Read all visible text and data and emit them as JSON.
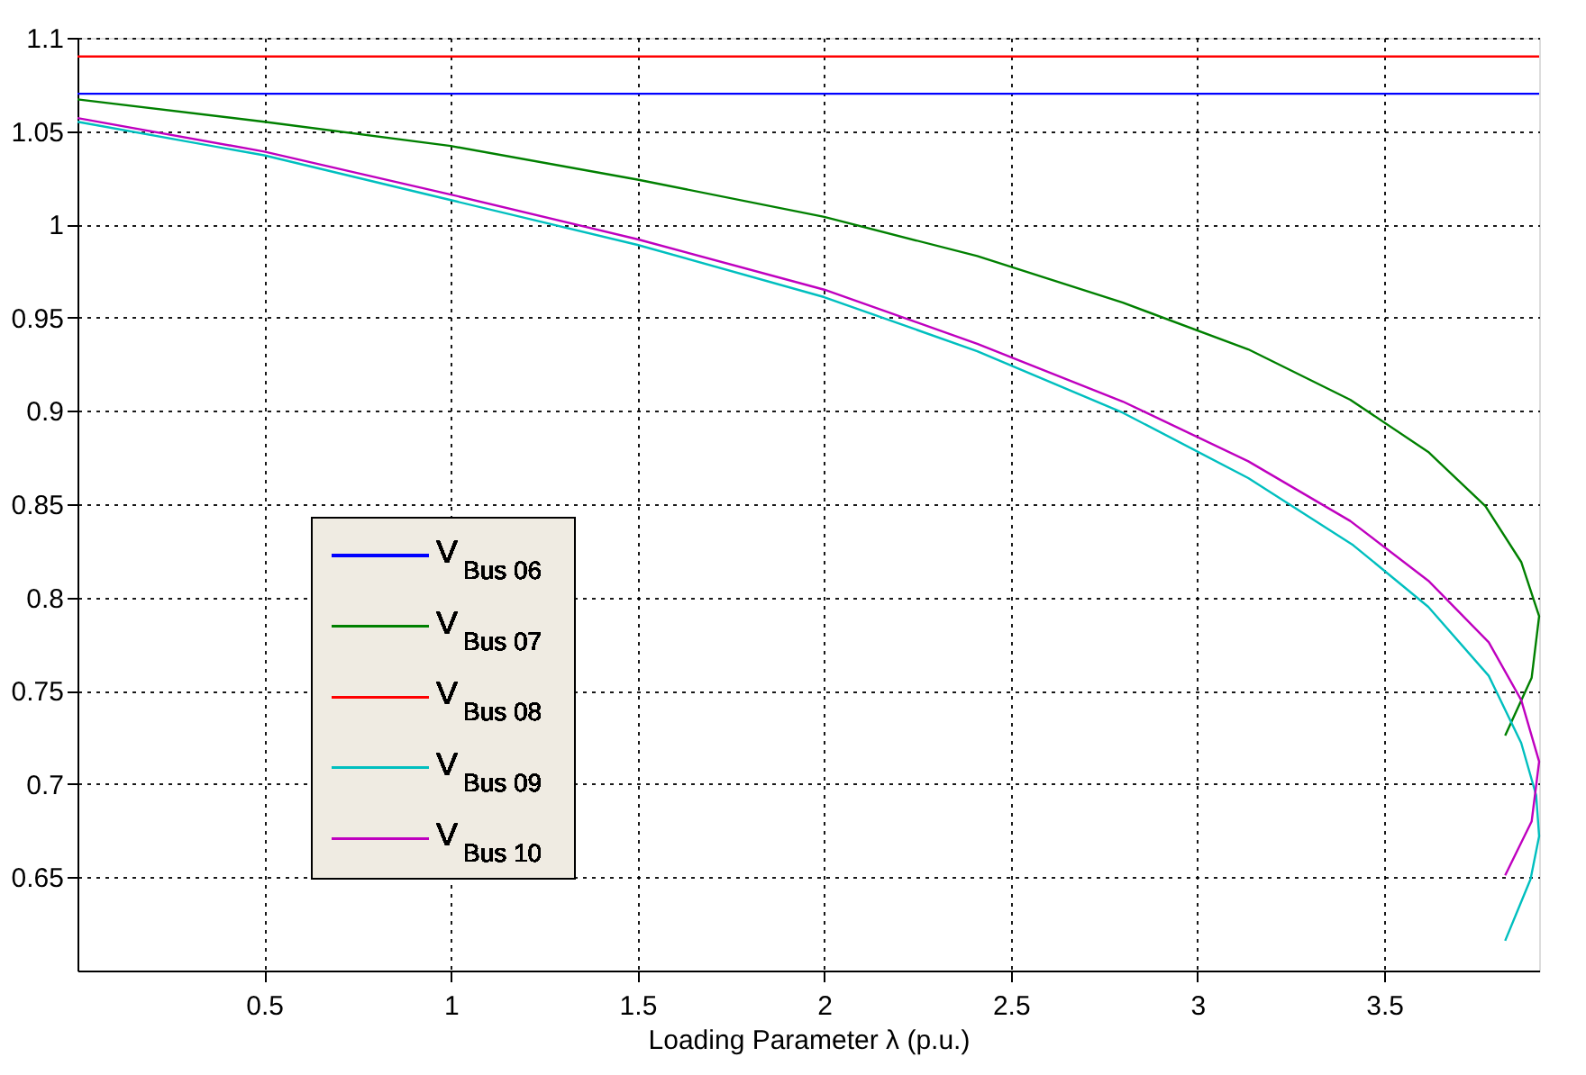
{
  "chart_data": {
    "type": "line",
    "xlabel": "Loading Parameter λ (p.u.)",
    "xlim": [
      0,
      3.915
    ],
    "ylim": [
      0.6,
      1.1
    ],
    "xticks": [
      0.5,
      1,
      1.5,
      2,
      2.5,
      3,
      3.5
    ],
    "yticks": [
      0.65,
      0.7,
      0.75,
      0.8,
      0.85,
      0.9,
      0.95,
      1,
      1.05,
      1.1
    ],
    "grid": true,
    "legend": "bottom left",
    "line_style": "solid",
    "marker": "none",
    "series": [
      {
        "name": "V$_{Bus 06}$",
        "color": "#0000ff",
        "x": [
          0,
          3.915
        ],
        "values": [
          1.07,
          1.07
        ]
      },
      {
        "name": "V$_{Bus 07}$",
        "color": "#008000",
        "x": [
          0,
          0.5,
          1,
          1.5,
          2,
          2.41,
          2.8,
          3.136,
          3.409,
          3.618,
          3.771,
          3.867,
          3.915,
          3.895,
          3.824
        ],
        "values": [
          1.067,
          1.055,
          1.042,
          1.024,
          1.004,
          0.983,
          0.958,
          0.933,
          0.906,
          0.878,
          0.849,
          0.819,
          0.79,
          0.757,
          0.726
        ]
      },
      {
        "name": "V$_{Bus 08}$",
        "color": "#ff0000",
        "x": [
          0,
          3.915
        ],
        "values": [
          1.09,
          1.09
        ]
      },
      {
        "name": "V$_{Bus 09}$",
        "color": "#00bfbf",
        "x": [
          0,
          0.5,
          1,
          1.5,
          2,
          2.41,
          2.8,
          3.136,
          3.417,
          3.618,
          3.78,
          3.867,
          3.907,
          3.915,
          3.892,
          3.824
        ],
        "values": [
          1.055,
          1.037,
          1.013,
          0.989,
          0.961,
          0.932,
          0.899,
          0.864,
          0.828,
          0.795,
          0.758,
          0.722,
          0.694,
          0.672,
          0.649,
          0.616
        ]
      },
      {
        "name": "V$_{Bus 10}$",
        "color": "#bf00bf",
        "x": [
          0,
          0.5,
          1,
          1.5,
          2,
          2.41,
          2.8,
          3.136,
          3.409,
          3.618,
          3.78,
          3.867,
          3.915,
          3.895,
          3.824
        ],
        "values": [
          1.057,
          1.039,
          1.016,
          0.992,
          0.965,
          0.936,
          0.905,
          0.873,
          0.841,
          0.809,
          0.776,
          0.745,
          0.712,
          0.68,
          0.651
        ]
      }
    ]
  }
}
